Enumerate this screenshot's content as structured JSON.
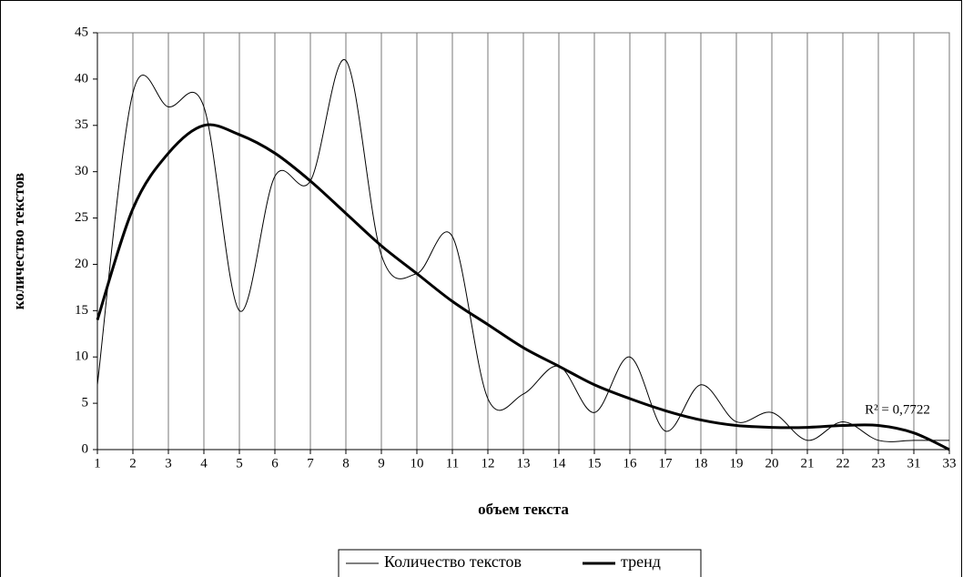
{
  "chart_data": {
    "type": "line",
    "x_label": "объем текста",
    "y_label": "количество текстов",
    "annotation": "R² = 0,7722",
    "categories": [
      "1",
      "2",
      "3",
      "4",
      "5",
      "6",
      "7",
      "8",
      "9",
      "10",
      "11",
      "12",
      "13",
      "14",
      "15",
      "16",
      "17",
      "18",
      "19",
      "20",
      "21",
      "22",
      "23",
      "31",
      "33"
    ],
    "series": [
      {
        "name": "Количество текстов",
        "color": "#000000",
        "width": 1,
        "values": [
          7,
          38.5,
          37,
          37,
          15,
          29.5,
          29,
          42,
          21,
          19,
          23,
          5.5,
          6,
          9,
          4,
          10,
          2,
          7,
          3,
          4,
          1,
          3,
          1,
          1,
          1
        ]
      },
      {
        "name": "тренд",
        "color": "#000000",
        "width": 3,
        "values": [
          14,
          26,
          32,
          35,
          34,
          32,
          29,
          25.5,
          22,
          19,
          16,
          13.5,
          11,
          9,
          7,
          5.5,
          4.2,
          3.2,
          2.6,
          2.4,
          2.4,
          2.6,
          2.6,
          1.8,
          0
        ]
      }
    ],
    "ylim": [
      0,
      45
    ],
    "yticks": [
      0,
      5,
      10,
      15,
      20,
      25,
      30,
      35,
      40,
      45
    ],
    "grid": true
  }
}
